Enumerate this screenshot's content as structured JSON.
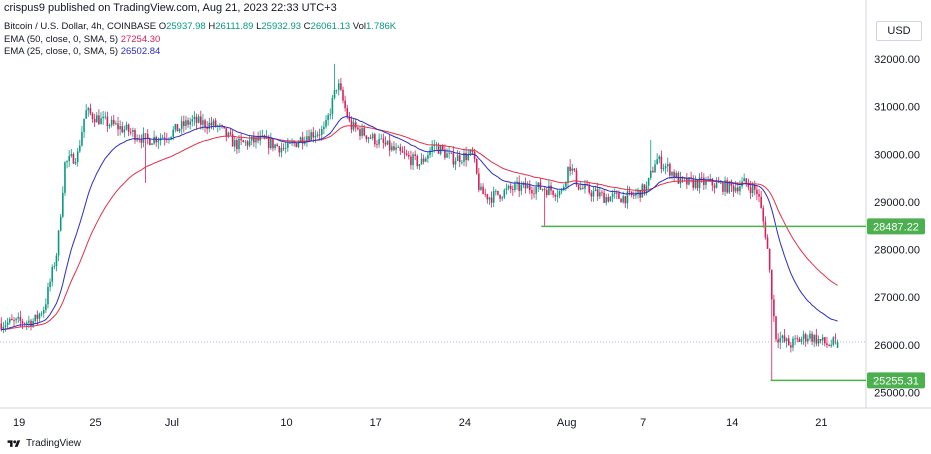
{
  "header": {
    "publisher_line": "crispus9 published on TradingView.com, Aug 21, 2023 22:33 UTC+3"
  },
  "symbol": {
    "name": "Bitcoin / U.S. Dollar, 4h, COINBASE",
    "open_label": "O",
    "open": "25937.98",
    "high_label": "H",
    "high": "26111.89",
    "low_label": "L",
    "low": "25932.93",
    "close_label": "C",
    "close": "26061.13",
    "vol_label": "Vol",
    "vol": "1.786K"
  },
  "indicators": [
    {
      "label": "EMA (50, close, 0, SMA, 5)",
      "value": "27254.30",
      "color": "#e0314b"
    },
    {
      "label": "EMA (25, close, 0, SMA, 5)",
      "value": "26502.84",
      "color": "#2a2ec4"
    }
  ],
  "currency_button": "USD",
  "footer": {
    "brand": "TradingView"
  },
  "colors": {
    "up": "#089981",
    "down": "#d81e5b",
    "ema50": "#e0314b",
    "ema25": "#2a2ec4",
    "support": "#4caf50",
    "current_price_line": "#9fa8da"
  },
  "chart_data": {
    "type": "candlestick",
    "ylim": [
      24800,
      32400
    ],
    "y_ticks": [
      "32000.00",
      "31000.00",
      "30000.00",
      "29000.00",
      "28000.00",
      "27000.00",
      "26000.00",
      "25000.00"
    ],
    "y_tick_values": [
      32000,
      31000,
      30000,
      29000,
      28000,
      27000,
      26000,
      25000
    ],
    "x_ticks": [
      "19",
      "25",
      "Jul",
      "10",
      "17",
      "24",
      "Aug",
      "7",
      "14",
      "21"
    ],
    "x_tick_days": [
      0,
      6,
      12,
      21,
      28,
      35,
      43,
      49,
      56,
      63
    ],
    "x_range_days": [
      -1.5,
      66.5
    ],
    "levels": [
      {
        "label": "28487.22",
        "value": 28487.22,
        "from_day": 41
      },
      {
        "label": "25255.31",
        "value": 25255.31,
        "from_day": 59
      }
    ],
    "current_price": 26061.13,
    "anchors": [
      [
        -1.4,
        26450
      ],
      [
        1.2,
        26500
      ],
      [
        2.0,
        26800
      ],
      [
        3.0,
        28000
      ],
      [
        3.6,
        29800
      ],
      [
        4.6,
        30000
      ],
      [
        5.2,
        30900
      ],
      [
        6.5,
        30700
      ],
      [
        8.5,
        30500
      ],
      [
        10.0,
        30300
      ],
      [
        11.6,
        30400
      ],
      [
        13.5,
        30700
      ],
      [
        15.5,
        30600
      ],
      [
        17.0,
        30200
      ],
      [
        19.0,
        30300
      ],
      [
        21.0,
        30100
      ],
      [
        22.5,
        30400
      ],
      [
        24.0,
        30500
      ],
      [
        25.0,
        31500
      ],
      [
        26.0,
        30600
      ],
      [
        28.0,
        30300
      ],
      [
        30.0,
        30000
      ],
      [
        31.5,
        29800
      ],
      [
        32.6,
        30200
      ],
      [
        34.0,
        29900
      ],
      [
        35.6,
        30000
      ],
      [
        36.2,
        29200
      ],
      [
        37.0,
        29100
      ],
      [
        39.0,
        29300
      ],
      [
        41.0,
        29300
      ],
      [
        42.6,
        29200
      ],
      [
        43.2,
        29800
      ],
      [
        44.0,
        29300
      ],
      [
        46.0,
        29100
      ],
      [
        48.0,
        29100
      ],
      [
        49.3,
        29300
      ],
      [
        50.0,
        29900
      ],
      [
        51.0,
        29700
      ],
      [
        52.0,
        29400
      ],
      [
        54.0,
        29400
      ],
      [
        56.0,
        29300
      ],
      [
        57.0,
        29400
      ],
      [
        58.0,
        29200
      ],
      [
        58.7,
        28200
      ],
      [
        59.4,
        26200
      ],
      [
        60.5,
        26000
      ],
      [
        62.0,
        26200
      ],
      [
        63.5,
        26000
      ],
      [
        64.4,
        26061
      ]
    ],
    "ema50_end": 27254.3,
    "ema25_end": 26502.84
  }
}
